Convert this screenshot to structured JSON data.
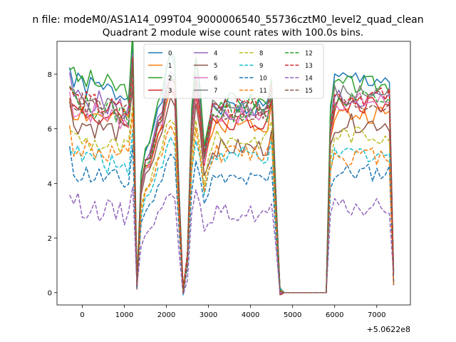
{
  "chart_data": {
    "type": "line",
    "title": "Quadrant 2 module wise count rates with 100.0s bins.",
    "suptitle": "n file: modeM0/AS1A14_099T04_9000006540_55736cztM0_level2_quad_clean",
    "xlabel": "",
    "ylabel": "",
    "offset_label": "+5.0622e8",
    "xlim": [
      -600,
      7800
    ],
    "ylim": [
      -0.45,
      9.2
    ],
    "x_ticks": [
      0,
      1000,
      2000,
      3000,
      4000,
      5000,
      6000,
      7000
    ],
    "x_tick_labels": [
      "0",
      "1000",
      "2000",
      "3000",
      "4000",
      "5000",
      "6000",
      "7000"
    ],
    "y_ticks": [
      0,
      2,
      4,
      6,
      8
    ],
    "y_tick_labels": [
      "0",
      "2",
      "4",
      "6",
      "8"
    ],
    "legend_position": "upper center",
    "x_start": -300,
    "x_step": 100,
    "segments": [
      {
        "phase": "high",
        "from": -300,
        "to": 1100
      },
      {
        "phase": "drop",
        "points": [
          [
            1200,
            1.2
          ],
          [
            1300,
            0.15
          ],
          [
            1400,
            0.55
          ],
          [
            1500,
            0.68
          ],
          [
            1600,
            0.7
          ],
          [
            1700,
            0.78
          ],
          [
            1800,
            0.88
          ],
          [
            1900,
            0.92
          ],
          [
            2000,
            1.05
          ]
        ]
      },
      {
        "phase": "peak1",
        "points": [
          [
            2100,
            1.12
          ],
          [
            2200,
            1.08
          ]
        ]
      },
      {
        "phase": "valley",
        "points": [
          [
            2300,
            0.5
          ],
          [
            2400,
            0.0
          ],
          [
            2500,
            0.18
          ]
        ]
      },
      {
        "phase": "peak2",
        "points": [
          [
            2600,
            0.85
          ],
          [
            2700,
            1.1
          ],
          [
            2800,
            0.95
          ],
          [
            2900,
            0.7
          ]
        ]
      },
      {
        "phase": "plateau",
        "from": 3000,
        "to": 4500
      },
      {
        "phase": "fall",
        "points": [
          [
            4600,
            0.5
          ],
          [
            4700,
            0.01
          ]
        ]
      },
      {
        "phase": "zero",
        "from": 4800,
        "to": 5800
      },
      {
        "phase": "rise",
        "points": [
          [
            5900,
            0.85
          ]
        ]
      },
      {
        "phase": "plateau2",
        "from": 6000,
        "to": 7300
      },
      {
        "phase": "end",
        "points": [
          [
            7400,
            0.15
          ]
        ]
      }
    ],
    "series": [
      {
        "name": "0",
        "color": "#1f77b4",
        "style": "solid",
        "level": 7.7,
        "plateau": 6.8,
        "plateau2": 7.8,
        "seed": 1
      },
      {
        "name": "1",
        "color": "#ff7f0e",
        "style": "solid",
        "level": 6.7,
        "plateau": 6.2,
        "plateau2": 6.5,
        "seed": 2
      },
      {
        "name": "2",
        "color": "#2ca02c",
        "style": "solid",
        "level": 7.9,
        "plateau": 7.0,
        "plateau2": 7.6,
        "seed": 3
      },
      {
        "name": "3",
        "color": "#d62728",
        "style": "solid",
        "level": 6.7,
        "plateau": 6.3,
        "plateau2": 6.9,
        "seed": 4
      },
      {
        "name": "4",
        "color": "#9467bd",
        "style": "solid",
        "level": 7.2,
        "plateau": 6.6,
        "plateau2": 7.1,
        "seed": 5
      },
      {
        "name": "5",
        "color": "#8c564b",
        "style": "solid",
        "level": 6.3,
        "plateau": 5.3,
        "plateau2": 6.2,
        "seed": 6
      },
      {
        "name": "6",
        "color": "#e377c2",
        "style": "solid",
        "level": 6.8,
        "plateau": 6.5,
        "plateau2": 7.0,
        "seed": 7
      },
      {
        "name": "7",
        "color": "#7f7f7f",
        "style": "solid",
        "level": 7.1,
        "plateau": 6.8,
        "plateau2": 7.3,
        "seed": 8
      },
      {
        "name": "8",
        "color": "#bcbd22",
        "style": "dashed",
        "level": 5.7,
        "plateau": 5.6,
        "plateau2": 5.8,
        "seed": 9
      },
      {
        "name": "9",
        "color": "#17becf",
        "style": "dashed",
        "level": 5.1,
        "plateau": 5.0,
        "plateau2": 5.1,
        "seed": 10
      },
      {
        "name": "10",
        "color": "#1f77b4",
        "style": "dashed",
        "level": 4.5,
        "plateau": 4.1,
        "plateau2": 4.4,
        "seed": 11
      },
      {
        "name": "11",
        "color": "#ff7f0e",
        "style": "dashed",
        "level": 5.4,
        "plateau": 5.1,
        "plateau2": 5.0,
        "seed": 12
      },
      {
        "name": "12",
        "color": "#2ca02c",
        "style": "dashed",
        "level": 7.0,
        "plateau": 6.6,
        "plateau2": 7.1,
        "seed": 13
      },
      {
        "name": "13",
        "color": "#d62728",
        "style": "dashed",
        "level": 7.1,
        "plateau": 6.8,
        "plateau2": 7.2,
        "seed": 14
      },
      {
        "name": "14",
        "color": "#9467bd",
        "style": "dashed",
        "level": 3.3,
        "plateau": 2.9,
        "plateau2": 3.1,
        "seed": 15
      },
      {
        "name": "15",
        "color": "#8c564b",
        "style": "dashed",
        "level": 7.0,
        "plateau": 6.6,
        "plateau2": 6.9,
        "seed": 16
      }
    ]
  }
}
